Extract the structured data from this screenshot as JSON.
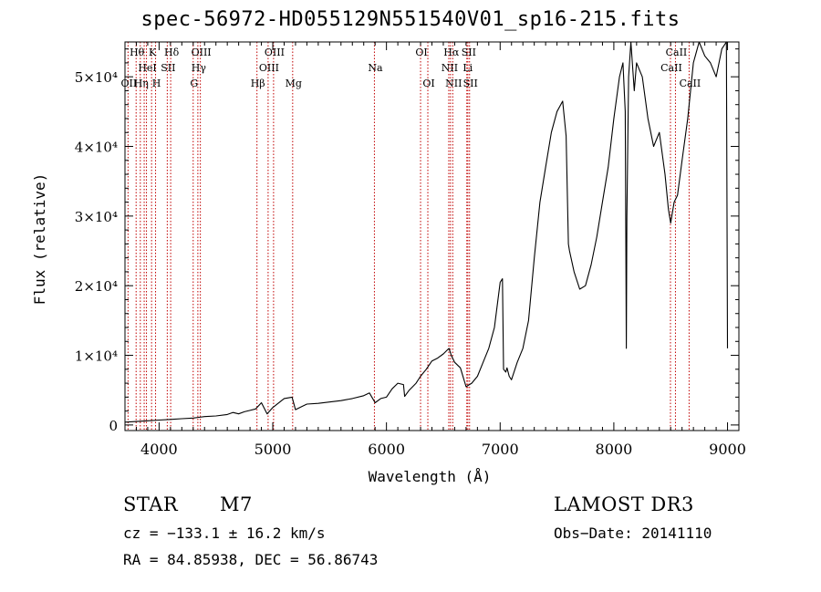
{
  "chart_data": {
    "type": "line",
    "title": "spec-56972-HD055129N551540V01_sp16-215.fits",
    "xlabel": "Wavelength (Å)",
    "ylabel": "Flux (relative)",
    "xlim": [
      3700,
      9100
    ],
    "ylim": [
      -800,
      55000
    ],
    "xticks": [
      4000,
      5000,
      6000,
      7000,
      8000,
      9000
    ],
    "yticks": [
      {
        "value": 0,
        "label": "0"
      },
      {
        "value": 10000,
        "label": "1×10⁴"
      },
      {
        "value": 20000,
        "label": "2×10⁴"
      },
      {
        "value": 30000,
        "label": "3×10⁴"
      },
      {
        "value": 40000,
        "label": "4×10⁴"
      },
      {
        "value": 50000,
        "label": "5×10⁴"
      }
    ],
    "lines": [
      {
        "w": 3727,
        "label": "OII",
        "row": 2
      },
      {
        "w": 3798,
        "label": "Hθ",
        "row": 0
      },
      {
        "w": 3835,
        "label": "Hη",
        "row": 2
      },
      {
        "w": 3869,
        "label": "",
        "row": 0
      },
      {
        "w": 3889,
        "label": "HeI",
        "row": 1
      },
      {
        "w": 3934,
        "label": "K",
        "row": 0
      },
      {
        "w": 3969,
        "label": "H",
        "row": 2
      },
      {
        "w": 4072,
        "label": "SII",
        "row": 1
      },
      {
        "w": 4102,
        "label": "Hδ",
        "row": 0
      },
      {
        "w": 4300,
        "label": "G",
        "row": 2
      },
      {
        "w": 4341,
        "label": "Hγ",
        "row": 1
      },
      {
        "w": 4363,
        "label": "OIII",
        "row": 0
      },
      {
        "w": 4861,
        "label": "Hβ",
        "row": 2
      },
      {
        "w": 4959,
        "label": "OIII",
        "row": 1
      },
      {
        "w": 5007,
        "label": "OIII",
        "row": 0
      },
      {
        "w": 5175,
        "label": "Mg",
        "row": 2
      },
      {
        "w": 5894,
        "label": "Na",
        "row": 1
      },
      {
        "w": 6300,
        "label": "OI",
        "row": 0
      },
      {
        "w": 6364,
        "label": "OI",
        "row": 2
      },
      {
        "w": 6548,
        "label": "NII",
        "row": 1
      },
      {
        "w": 6563,
        "label": "Hα",
        "row": 0
      },
      {
        "w": 6583,
        "label": "NII",
        "row": 2
      },
      {
        "w": 6707,
        "label": "Li",
        "row": 1
      },
      {
        "w": 6716,
        "label": "SII",
        "row": 0
      },
      {
        "w": 6731,
        "label": "SII",
        "row": 2
      },
      {
        "w": 8498,
        "label": "CaII",
        "row": 1
      },
      {
        "w": 8542,
        "label": "CaII",
        "row": 0
      },
      {
        "w": 8662,
        "label": "CaII",
        "row": 2
      }
    ],
    "series": [
      {
        "name": "flux",
        "x": [
          3700,
          3800,
          3900,
          4000,
          4100,
          4200,
          4300,
          4350,
          4400,
          4500,
          4600,
          4650,
          4700,
          4750,
          4800,
          4850,
          4900,
          4950,
          5000,
          5100,
          5170,
          5200,
          5250,
          5300,
          5400,
          5500,
          5600,
          5700,
          5800,
          5850,
          5900,
          5950,
          6000,
          6050,
          6100,
          6150,
          6160,
          6200,
          6260,
          6300,
          6350,
          6400,
          6450,
          6500,
          6550,
          6570,
          6600,
          6650,
          6700,
          6750,
          6800,
          6850,
          6900,
          6950,
          7000,
          7020,
          7030,
          7050,
          7060,
          7080,
          7100,
          7150,
          7200,
          7250,
          7300,
          7350,
          7400,
          7450,
          7500,
          7550,
          7580,
          7600,
          7610,
          7650,
          7700,
          7750,
          7800,
          7850,
          7900,
          7950,
          8000,
          8050,
          8080,
          8100,
          8110,
          8115,
          8130,
          8150,
          8180,
          8200,
          8250,
          8300,
          8350,
          8400,
          8450,
          8480,
          8500,
          8530,
          8560,
          8600,
          8650,
          8700,
          8750,
          8800,
          8850,
          8900,
          8950,
          8990,
          9000
        ],
        "y": [
          400,
          500,
          600,
          700,
          800,
          900,
          1000,
          1100,
          1200,
          1300,
          1500,
          1800,
          1600,
          1900,
          2100,
          2300,
          3200,
          1600,
          2500,
          3800,
          4000,
          2200,
          2600,
          3000,
          3100,
          3300,
          3500,
          3800,
          4200,
          4600,
          3200,
          3800,
          4000,
          5200,
          6000,
          5800,
          4100,
          5000,
          6000,
          7000,
          8000,
          9200,
          9600,
          10200,
          11000,
          10000,
          9000,
          8200,
          5500,
          6000,
          7000,
          9000,
          11000,
          14000,
          20500,
          21000,
          8000,
          7600,
          8200,
          7000,
          6500,
          9000,
          11000,
          15000,
          24000,
          32000,
          37000,
          42000,
          45000,
          46500,
          41500,
          26000,
          25000,
          22000,
          19500,
          20000,
          23000,
          27000,
          32000,
          37000,
          44000,
          50000,
          52000,
          45000,
          11000,
          30000,
          50000,
          55000,
          48000,
          52000,
          50000,
          44000,
          40000,
          42000,
          36000,
          31000,
          29000,
          32000,
          33000,
          38000,
          44000,
          52000,
          55000,
          53000,
          52000,
          50000,
          54000,
          55000,
          11000
        ]
      }
    ]
  },
  "info": {
    "object_class": "STAR",
    "subclass": "M7",
    "survey": "LAMOST DR3",
    "cz": "cz = −133.1 ± 16.2 km/s",
    "obs_date": "Obs−Date: 20141110",
    "coords": "RA =  84.85938, DEC =  56.86743"
  }
}
